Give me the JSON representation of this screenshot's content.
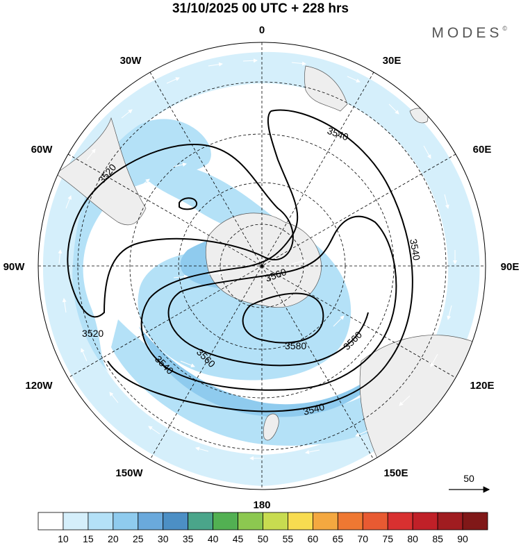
{
  "title": "31/10/2025  00 UTC  + 228 hrs",
  "brand": "MODES",
  "brand_mark": "©",
  "map": {
    "projection": "south-polar-stereographic",
    "meridian_labels": [
      {
        "text": "0",
        "lon": 0
      },
      {
        "text": "30E",
        "lon": 30
      },
      {
        "text": "60E",
        "lon": 60
      },
      {
        "text": "90E",
        "lon": 90
      },
      {
        "text": "120E",
        "lon": 120
      },
      {
        "text": "150E",
        "lon": 150
      },
      {
        "text": "180",
        "lon": 180
      },
      {
        "text": "150W",
        "lon": -150
      },
      {
        "text": "120W",
        "lon": -120
      },
      {
        "text": "90W",
        "lon": -90
      },
      {
        "text": "60W",
        "lon": -60
      },
      {
        "text": "30W",
        "lon": -30
      }
    ],
    "contour_labels": [
      {
        "text": "3540"
      },
      {
        "text": "3520"
      },
      {
        "text": "3540"
      },
      {
        "text": "3560"
      },
      {
        "text": "3520"
      },
      {
        "text": "3540"
      },
      {
        "text": "3560"
      },
      {
        "text": "3580"
      },
      {
        "text": "3560"
      },
      {
        "text": "3540"
      }
    ],
    "wind_reference": "50"
  },
  "colorbar": {
    "ticks": [
      "10",
      "15",
      "20",
      "25",
      "30",
      "35",
      "40",
      "45",
      "50",
      "55",
      "60",
      "65",
      "70",
      "75",
      "80",
      "85",
      "90"
    ],
    "colors": [
      "#ffffff",
      "#d5effb",
      "#b4e1f7",
      "#8fcbee",
      "#6aa9dc",
      "#4c8fc5",
      "#4aa58a",
      "#52b052",
      "#8cc850",
      "#c8dc50",
      "#f8dc50",
      "#f4a840",
      "#ef7832",
      "#e85a32",
      "#d83030",
      "#c02028",
      "#a01c20",
      "#801818"
    ]
  }
}
